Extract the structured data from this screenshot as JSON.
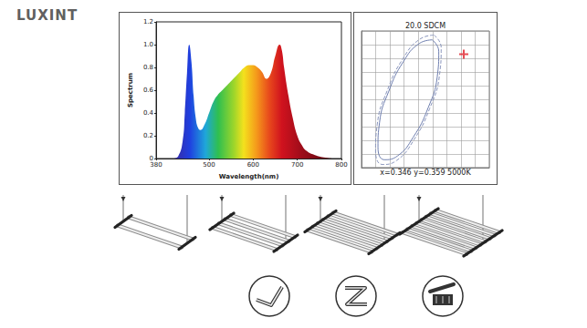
{
  "brand": "LUXINT",
  "chart_data": [
    {
      "type": "area",
      "xlabel": "Wavelength(nm)",
      "ylabel": "Spectrum",
      "x": [
        420,
        430,
        440,
        445,
        450,
        455,
        460,
        465,
        470,
        475,
        480,
        490,
        500,
        510,
        520,
        530,
        540,
        550,
        560,
        570,
        580,
        590,
        600,
        610,
        620,
        630,
        640,
        650,
        660,
        665,
        670,
        680,
        690,
        700,
        710,
        720,
        740,
        760,
        780
      ],
      "values": [
        0,
        0.02,
        0.15,
        0.4,
        0.75,
        1.0,
        0.85,
        0.55,
        0.35,
        0.27,
        0.25,
        0.3,
        0.4,
        0.5,
        0.56,
        0.6,
        0.64,
        0.68,
        0.72,
        0.76,
        0.8,
        0.82,
        0.82,
        0.8,
        0.76,
        0.7,
        0.75,
        0.9,
        1.0,
        0.95,
        0.8,
        0.55,
        0.35,
        0.2,
        0.12,
        0.07,
        0.03,
        0.01,
        0
      ],
      "xlim": [
        380,
        800
      ],
      "xticks": [
        380,
        500,
        600,
        700,
        800
      ],
      "ylim": [
        0,
        1.2
      ],
      "yticks": [
        0,
        0.2,
        0.4,
        0.6,
        0.8,
        {
          "value": 1,
          "label": "1.0"
        },
        1.2
      ],
      "grid": false
    },
    {
      "type": "line",
      "title": "20.0 SDCM",
      "annotation": "x=0.346 y=0.359 5000K",
      "xlim": [
        0,
        9
      ],
      "xticks": [
        0,
        1,
        2,
        3,
        4,
        5,
        6,
        7,
        8,
        9
      ],
      "ylim": [
        0,
        10
      ],
      "yticks": [
        0,
        1,
        2,
        3,
        4,
        5,
        6,
        7,
        8,
        9,
        10
      ],
      "grid": true,
      "tick_labels": false,
      "series": [
        {
          "color": "#6f7fb0",
          "line_style": "solid",
          "x": [
            4.98,
            5.44,
            5.33,
            4.68,
            3.65,
            2.54,
            1.62,
            1.16,
            1.27,
            1.92,
            2.95,
            4.06,
            4.98
          ],
          "values": [
            9.35,
            8.52,
            6.63,
            4.35,
            2.24,
            0.86,
            0.58,
            1.48,
            3.31,
            5.59,
            7.76,
            9.08,
            9.35
          ]
        },
        {
          "color": "#8a96bd",
          "line_style": "dashed",
          "x": [
            5.11,
            5.61,
            5.49,
            4.79,
            3.68,
            2.48,
            1.49,
            0.99,
            1.11,
            1.81,
            2.92,
            4.12,
            5.11
          ],
          "values": [
            9.7,
            8.8,
            6.76,
            4.3,
            2.02,
            0.53,
            0.23,
            1.2,
            3.18,
            5.64,
            7.98,
            9.41,
            9.7
          ]
        },
        {
          "type": "scatter",
          "color": "#e0202a",
          "marker": "cross",
          "x": [
            7.2
          ],
          "values": [
            8.3
          ]
        }
      ]
    }
  ],
  "fixtures": {
    "bar_counts": [
      2,
      4,
      6,
      8
    ]
  }
}
